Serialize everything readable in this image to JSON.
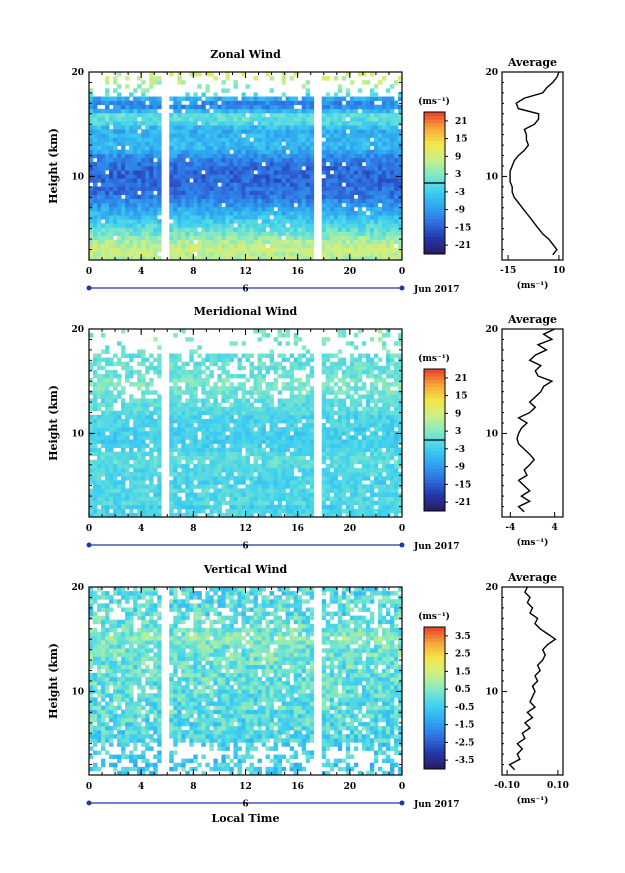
{
  "chart_data": [
    {
      "type": "heatmap",
      "title": "Zonal Wind",
      "ylabel": "Height (km)",
      "xlabel": "",
      "x_ticks": [
        "0",
        "4",
        "8",
        "12",
        "16",
        "20",
        "0"
      ],
      "y_ticks": [
        "10",
        "20"
      ],
      "date_marker": "6",
      "date_label": "Jun 2017",
      "ylim": [
        2,
        20
      ],
      "xlim": [
        0,
        24
      ],
      "colorbar": {
        "unit": "(ms⁻¹)",
        "ticks": [
          "21",
          "15",
          "9",
          "3",
          "-3",
          "-9",
          "-15",
          "-21"
        ],
        "range": [
          -24,
          24
        ],
        "zero_line": true
      },
      "average": {
        "title": "Average",
        "xlabel": "(ms⁻¹)",
        "x_ticks": [
          "-15",
          "10"
        ],
        "xlim": [
          -18,
          12
        ],
        "profile": [
          {
            "h": 2.5,
            "v": 7
          },
          {
            "h": 3.0,
            "v": 9
          },
          {
            "h": 3.5,
            "v": 7
          },
          {
            "h": 4.0,
            "v": 5
          },
          {
            "h": 4.5,
            "v": 2
          },
          {
            "h": 5.0,
            "v": 0
          },
          {
            "h": 5.5,
            "v": -2
          },
          {
            "h": 6.0,
            "v": -4
          },
          {
            "h": 6.5,
            "v": -6
          },
          {
            "h": 7.0,
            "v": -8
          },
          {
            "h": 7.5,
            "v": -10
          },
          {
            "h": 8.0,
            "v": -12
          },
          {
            "h": 8.5,
            "v": -13
          },
          {
            "h": 9.0,
            "v": -13
          },
          {
            "h": 9.5,
            "v": -14
          },
          {
            "h": 10.0,
            "v": -14
          },
          {
            "h": 10.5,
            "v": -14
          },
          {
            "h": 11.0,
            "v": -13
          },
          {
            "h": 11.5,
            "v": -12
          },
          {
            "h": 12.0,
            "v": -10
          },
          {
            "h": 12.5,
            "v": -7
          },
          {
            "h": 13.0,
            "v": -5
          },
          {
            "h": 13.5,
            "v": -6
          },
          {
            "h": 14.0,
            "v": -6
          },
          {
            "h": 14.5,
            "v": -7
          },
          {
            "h": 15.0,
            "v": -2
          },
          {
            "h": 15.5,
            "v": 0
          },
          {
            "h": 16.0,
            "v": 0
          },
          {
            "h": 16.5,
            "v": -10
          },
          {
            "h": 17.0,
            "v": -11
          },
          {
            "h": 17.5,
            "v": -7
          },
          {
            "h": 18.0,
            "v": 2
          },
          {
            "h": 18.5,
            "v": 4
          },
          {
            "h": 19.0,
            "v": 7
          },
          {
            "h": 19.5,
            "v": 9
          },
          {
            "h": 20.0,
            "v": 10
          }
        ]
      }
    },
    {
      "type": "heatmap",
      "title": "Meridional Wind",
      "ylabel": "Height (km)",
      "xlabel": "",
      "x_ticks": [
        "0",
        "4",
        "8",
        "12",
        "16",
        "20",
        "0"
      ],
      "y_ticks": [
        "10",
        "20"
      ],
      "date_marker": "6",
      "date_label": "Jun 2017",
      "ylim": [
        2,
        20
      ],
      "xlim": [
        0,
        24
      ],
      "colorbar": {
        "unit": "(ms⁻¹)",
        "ticks": [
          "21",
          "15",
          "9",
          "3",
          "-3",
          "-9",
          "-15",
          "-21"
        ],
        "range": [
          -24,
          24
        ],
        "zero_line": true
      },
      "average": {
        "title": "Average",
        "xlabel": "(ms⁻¹)",
        "x_ticks": [
          "-4",
          "4"
        ],
        "xlim": [
          -5.5,
          5.5
        ],
        "profile": [
          {
            "h": 2.5,
            "v": -1.5
          },
          {
            "h": 3.0,
            "v": -2.5
          },
          {
            "h": 3.5,
            "v": -0.5
          },
          {
            "h": 4.0,
            "v": -2.0
          },
          {
            "h": 4.5,
            "v": -0.5
          },
          {
            "h": 5.0,
            "v": -1.5
          },
          {
            "h": 5.5,
            "v": -2.5
          },
          {
            "h": 6.0,
            "v": -1.0
          },
          {
            "h": 6.5,
            "v": -1.5
          },
          {
            "h": 7.0,
            "v": -0.5
          },
          {
            "h": 7.5,
            "v": 0.3
          },
          {
            "h": 8.0,
            "v": -0.5
          },
          {
            "h": 8.5,
            "v": -1.5
          },
          {
            "h": 9.0,
            "v": -2.5
          },
          {
            "h": 9.5,
            "v": -2.8
          },
          {
            "h": 10.0,
            "v": -2.5
          },
          {
            "h": 10.5,
            "v": -2.0
          },
          {
            "h": 11.0,
            "v": -1.0
          },
          {
            "h": 11.5,
            "v": -2.5
          },
          {
            "h": 12.0,
            "v": -0.5
          },
          {
            "h": 12.5,
            "v": 0.5
          },
          {
            "h": 13.0,
            "v": -0.5
          },
          {
            "h": 13.5,
            "v": 0.5
          },
          {
            "h": 14.0,
            "v": 1.5
          },
          {
            "h": 14.5,
            "v": 2.0
          },
          {
            "h": 15.0,
            "v": 3.5
          },
          {
            "h": 15.5,
            "v": 1.0
          },
          {
            "h": 16.0,
            "v": 0.5
          },
          {
            "h": 16.5,
            "v": 1.5
          },
          {
            "h": 17.0,
            "v": -0.5
          },
          {
            "h": 17.5,
            "v": 0.5
          },
          {
            "h": 18.0,
            "v": 2.5
          },
          {
            "h": 18.5,
            "v": 1.0
          },
          {
            "h": 19.0,
            "v": 3.5
          },
          {
            "h": 19.5,
            "v": 2.0
          },
          {
            "h": 20.0,
            "v": 4.0
          }
        ]
      }
    },
    {
      "type": "heatmap",
      "title": "Vertical Wind",
      "ylabel": "Height (km)",
      "xlabel": "Local Time",
      "x_ticks": [
        "0",
        "4",
        "8",
        "12",
        "16",
        "20",
        "0"
      ],
      "y_ticks": [
        "10",
        "20"
      ],
      "date_marker": "6",
      "date_label": "Jun 2017",
      "ylim": [
        2,
        20
      ],
      "xlim": [
        0,
        24
      ],
      "colorbar": {
        "unit": "(ms⁻¹)",
        "ticks": [
          "3.5",
          "2.5",
          "1.5",
          "0.5",
          "-0.5",
          "-1.5",
          "-2.5",
          "-3.5"
        ],
        "range": [
          -4,
          4
        ],
        "zero_line": false
      },
      "average": {
        "title": "Average",
        "xlabel": "(ms⁻¹)",
        "x_ticks": [
          "-0.10",
          "0.10"
        ],
        "xlim": [
          -0.12,
          0.12
        ],
        "profile": [
          {
            "h": 2.5,
            "v": -0.07
          },
          {
            "h": 3.0,
            "v": -0.09
          },
          {
            "h": 3.5,
            "v": -0.05
          },
          {
            "h": 4.0,
            "v": -0.06
          },
          {
            "h": 4.5,
            "v": -0.04
          },
          {
            "h": 5.0,
            "v": -0.06
          },
          {
            "h": 5.5,
            "v": -0.03
          },
          {
            "h": 6.0,
            "v": -0.04
          },
          {
            "h": 6.5,
            "v": -0.01
          },
          {
            "h": 7.0,
            "v": -0.03
          },
          {
            "h": 7.5,
            "v": 0.0
          },
          {
            "h": 8.0,
            "v": -0.02
          },
          {
            "h": 8.5,
            "v": 0.01
          },
          {
            "h": 9.0,
            "v": -0.01
          },
          {
            "h": 9.5,
            "v": 0.0
          },
          {
            "h": 10.0,
            "v": 0.01
          },
          {
            "h": 10.5,
            "v": 0.0
          },
          {
            "h": 11.0,
            "v": 0.02
          },
          {
            "h": 11.5,
            "v": 0.01
          },
          {
            "h": 12.0,
            "v": 0.03
          },
          {
            "h": 12.5,
            "v": 0.02
          },
          {
            "h": 13.0,
            "v": 0.04
          },
          {
            "h": 13.5,
            "v": 0.05
          },
          {
            "h": 14.0,
            "v": 0.04
          },
          {
            "h": 14.5,
            "v": 0.06
          },
          {
            "h": 15.0,
            "v": 0.09
          },
          {
            "h": 15.5,
            "v": 0.06
          },
          {
            "h": 16.0,
            "v": 0.03
          },
          {
            "h": 16.5,
            "v": 0.01
          },
          {
            "h": 17.0,
            "v": 0.02
          },
          {
            "h": 17.5,
            "v": -0.01
          },
          {
            "h": 18.0,
            "v": 0.0
          },
          {
            "h": 18.5,
            "v": -0.02
          },
          {
            "h": 19.0,
            "v": -0.01
          },
          {
            "h": 19.5,
            "v": -0.03
          },
          {
            "h": 20.0,
            "v": -0.02
          }
        ]
      }
    }
  ]
}
